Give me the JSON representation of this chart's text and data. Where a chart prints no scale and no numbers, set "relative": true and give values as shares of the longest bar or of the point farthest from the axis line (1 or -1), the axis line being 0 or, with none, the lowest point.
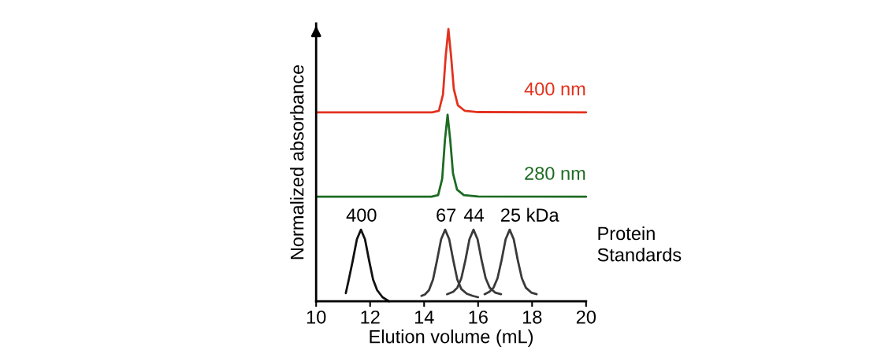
{
  "chart_data": {
    "type": "line",
    "relative": true,
    "xlabel": "Elution volume (mL)",
    "ylabel": "Normalized absorbance",
    "xlim": [
      10,
      20
    ],
    "xticks": [
      10,
      12,
      14,
      16,
      18,
      20
    ],
    "grid": false,
    "legend": false,
    "series": [
      {
        "name": "400 nm",
        "color": "#e2321e",
        "x": [
          10,
          14.3,
          14.55,
          14.7,
          14.8,
          14.9,
          15.0,
          15.1,
          15.25,
          15.5,
          16,
          20
        ],
        "values": [
          0.694,
          0.694,
          0.7,
          0.76,
          0.9,
          1.0,
          0.9,
          0.78,
          0.72,
          0.7,
          0.695,
          0.694
        ]
      },
      {
        "name": "280 nm",
        "color": "#1d6b22",
        "x": [
          10,
          14.27,
          14.52,
          14.67,
          14.77,
          14.87,
          14.97,
          15.07,
          15.22,
          15.47,
          16,
          20
        ],
        "values": [
          0.384,
          0.384,
          0.39,
          0.45,
          0.59,
          0.685,
          0.59,
          0.47,
          0.41,
          0.39,
          0.385,
          0.384
        ]
      },
      {
        "color": "#111111",
        "x": [
          11.1,
          11.21,
          11.36,
          11.51,
          11.66,
          11.81,
          11.96,
          12.11,
          12.26,
          12.46,
          12.7
        ],
        "values": [
          0.03,
          0.08,
          0.151,
          0.228,
          0.263,
          0.228,
          0.151,
          0.08,
          0.041,
          0.015,
          0.0
        ]
      },
      {
        "color": "#3a3a3a",
        "x": [
          13.9,
          14.03,
          14.18,
          14.33,
          14.48,
          14.63,
          14.78,
          14.93,
          15.08,
          15.23,
          15.38,
          15.58,
          15.8,
          16.0
        ],
        "values": [
          0.02,
          0.025,
          0.041,
          0.08,
          0.151,
          0.228,
          0.263,
          0.228,
          0.151,
          0.08,
          0.045,
          0.028,
          0.02,
          0.015
        ]
      },
      {
        "color": "#3a3a3a",
        "x": [
          14.85,
          15.08,
          15.23,
          15.38,
          15.53,
          15.68,
          15.83,
          15.98,
          16.13,
          16.28,
          16.43,
          16.63,
          16.85
        ],
        "values": [
          0.026,
          0.035,
          0.05,
          0.085,
          0.151,
          0.228,
          0.263,
          0.228,
          0.151,
          0.085,
          0.05,
          0.032,
          0.026
        ]
      },
      {
        "color": "#3a3a3a",
        "x": [
          16.24,
          16.42,
          16.57,
          16.72,
          16.87,
          17.02,
          17.17,
          17.32,
          17.47,
          17.62,
          17.77,
          17.97,
          18.17
        ],
        "values": [
          0.026,
          0.035,
          0.05,
          0.085,
          0.151,
          0.228,
          0.263,
          0.228,
          0.151,
          0.085,
          0.05,
          0.032,
          0.026
        ]
      }
    ],
    "annotations": [
      {
        "text": "400",
        "x": 11.66,
        "y": 0.263
      },
      {
        "text": "67",
        "x": 14.78,
        "y": 0.263
      },
      {
        "text": "44",
        "x": 15.83,
        "y": 0.263
      },
      {
        "text": "25 kDa",
        "x": 17.17,
        "y": 0.263
      },
      "Protein\nStandards"
    ]
  }
}
